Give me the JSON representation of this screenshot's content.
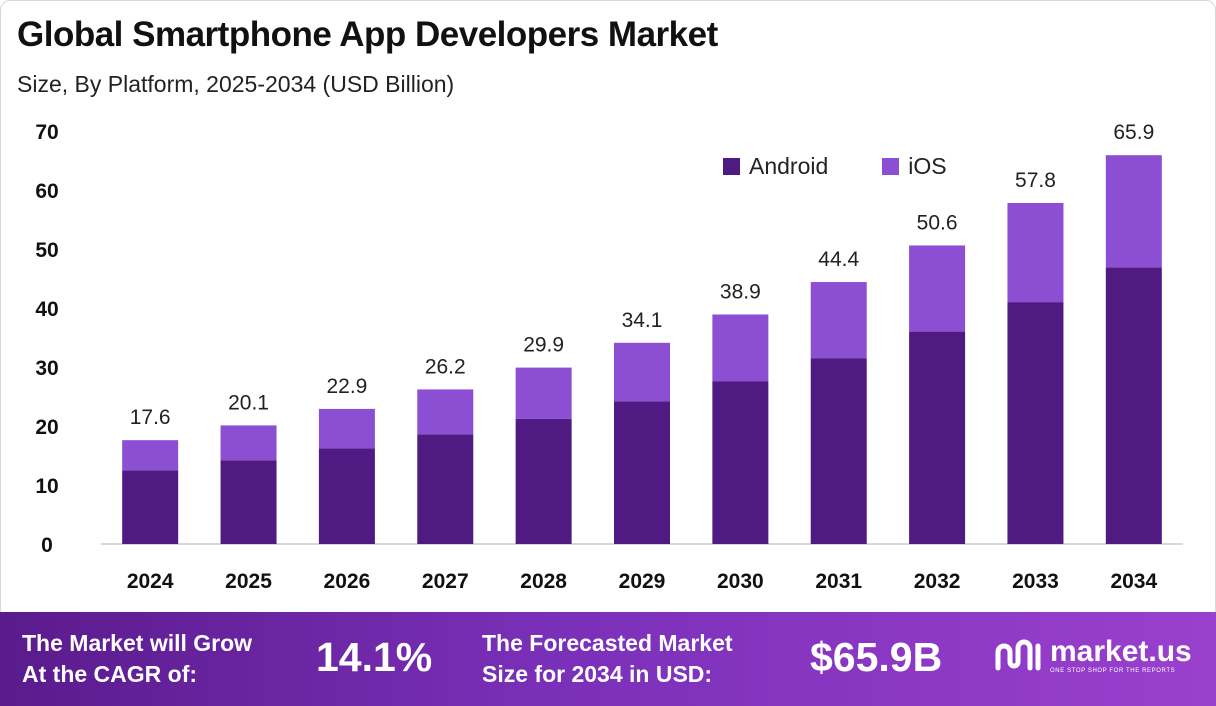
{
  "header": {
    "title": "Global Smartphone App Developers Market",
    "subtitle": "Size, By Platform, 2025-2034 (USD Billion)"
  },
  "colors": {
    "android": "#4f1a82",
    "ios": "#8c4fd4",
    "axis": "#cccccc",
    "footer_start": "#5a1b8c",
    "footer_end": "#9a40cf"
  },
  "legend": [
    {
      "label": "Android",
      "color": "#4f1a82"
    },
    {
      "label": "iOS",
      "color": "#8c4fd4"
    }
  ],
  "chart_data": {
    "type": "bar",
    "stacked": true,
    "categories": [
      "2024",
      "2025",
      "2026",
      "2027",
      "2028",
      "2029",
      "2030",
      "2031",
      "2032",
      "2033",
      "2034"
    ],
    "series": [
      {
        "name": "Android",
        "values": [
          12.5,
          14.2,
          16.2,
          18.6,
          21.2,
          24.2,
          27.6,
          31.5,
          36.0,
          41.0,
          46.9
        ]
      },
      {
        "name": "iOS",
        "values": [
          5.1,
          5.9,
          6.7,
          7.6,
          8.7,
          9.9,
          11.3,
          12.9,
          14.6,
          16.8,
          19.0
        ]
      }
    ],
    "totals": [
      17.6,
      20.1,
      22.9,
      26.2,
      29.9,
      34.1,
      38.9,
      44.4,
      50.6,
      57.8,
      65.9
    ],
    "total_labels": [
      "17.6",
      "20.1",
      "22.9",
      "26.2",
      "29.9",
      "34.1",
      "38.9",
      "44.4",
      "50.6",
      "57.8",
      "65.9"
    ],
    "yticks": [
      "0",
      "10",
      "20",
      "30",
      "40",
      "50",
      "60",
      "70"
    ],
    "ylim": [
      0,
      70
    ],
    "grid": false,
    "legend_position": "top-right",
    "title": "Global Smartphone App Developers Market",
    "xlabel": "",
    "ylabel": ""
  },
  "footer": {
    "cagr_line1": "The Market will Grow",
    "cagr_line2": "At the CAGR of:",
    "cagr_value": "14.1%",
    "forecast_line1": "The Forecasted Market",
    "forecast_line2": "Size for 2034 in USD:",
    "forecast_value": "$65.9B",
    "logo_name": "market.us",
    "logo_tagline": "ONE STOP SHOP FOR THE REPORTS"
  }
}
